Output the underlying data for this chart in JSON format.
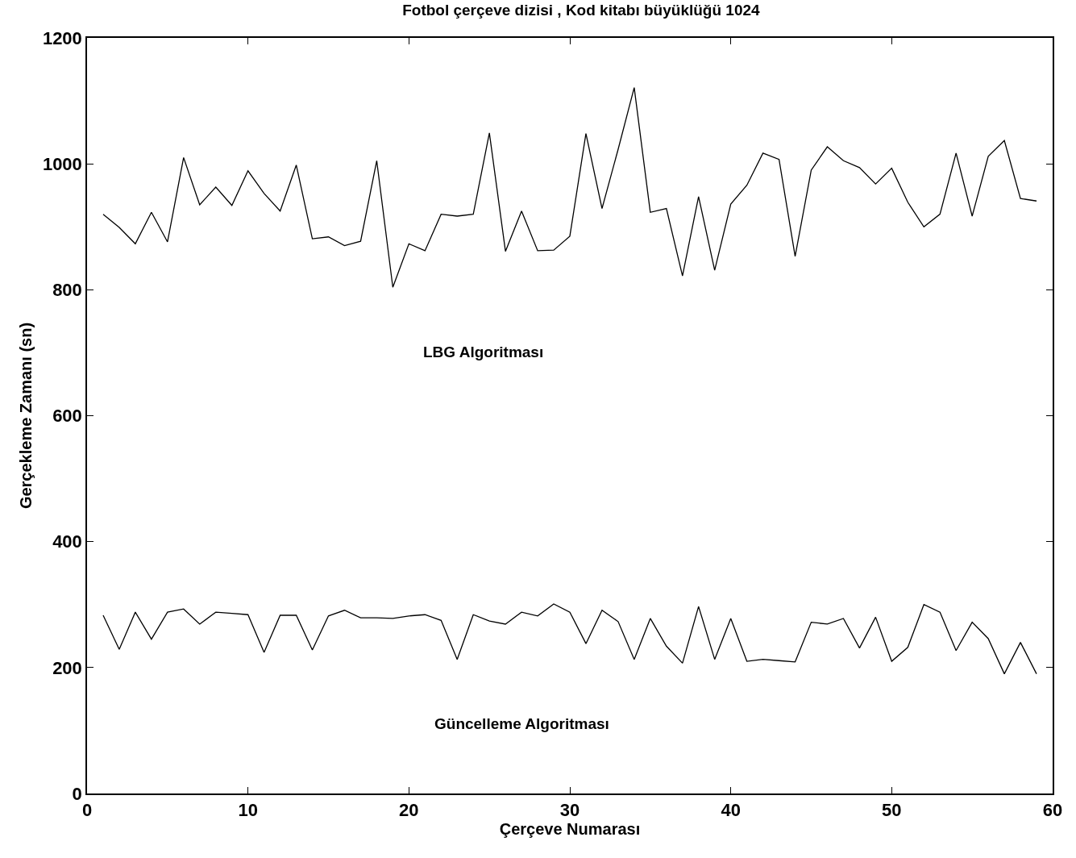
{
  "chart_data": {
    "type": "line",
    "title": "Fotbol çerçeve dizisi , Kod kitabı büyüklüğü 1024",
    "xlabel": "Çerçeve Numarası",
    "ylabel": "Gerçekleme Zamanı (sn)",
    "x": [
      1,
      2,
      3,
      4,
      5,
      6,
      7,
      8,
      9,
      10,
      11,
      12,
      13,
      14,
      15,
      16,
      17,
      18,
      19,
      20,
      21,
      22,
      23,
      24,
      25,
      26,
      27,
      28,
      29,
      30,
      31,
      32,
      33,
      34,
      35,
      36,
      37,
      38,
      39,
      40,
      41,
      42,
      43,
      44,
      45,
      46,
      47,
      48,
      49,
      50,
      51,
      52,
      53,
      54,
      55,
      56,
      57,
      58,
      59
    ],
    "series": [
      {
        "color": "#000000",
        "values": [
          920,
          899,
          873,
          923,
          876,
          1010,
          935,
          963,
          934,
          989,
          953,
          925,
          998,
          881,
          884,
          870,
          877,
          1005,
          804,
          873,
          862,
          920,
          917,
          920,
          1049,
          861,
          925,
          862,
          863,
          885,
          1048,
          929,
          1023,
          1121,
          923,
          929,
          822,
          948,
          831,
          936,
          966,
          1017,
          1007,
          853,
          990,
          1027,
          1005,
          994,
          968,
          993,
          939,
          900,
          920,
          1017,
          917,
          1012,
          1037,
          945,
          941
        ]
      },
      {
        "color": "#000000",
        "values": [
          283,
          229,
          288,
          245,
          288,
          293,
          269,
          288,
          286,
          284,
          224,
          283,
          283,
          228,
          282,
          291,
          279,
          279,
          278,
          282,
          284,
          275,
          213,
          284,
          274,
          269,
          288,
          282,
          301,
          288,
          238,
          291,
          273,
          213,
          278,
          234,
          207,
          297,
          213,
          278,
          210,
          213,
          211,
          209,
          272,
          269,
          278,
          231,
          280,
          210,
          232,
          300,
          288,
          227,
          272,
          246,
          190,
          240,
          190
        ]
      }
    ],
    "annotations": [
      "LBG Algoritması",
      "Güncelleme Algoritması"
    ],
    "xlim": [
      0,
      60
    ],
    "xticks": [
      0,
      10,
      20,
      30,
      40,
      50,
      60
    ],
    "ylim": [
      0,
      1200
    ],
    "yticks": [
      0,
      200,
      400,
      600,
      800,
      1000,
      1200
    ],
    "grid": false,
    "marker": "none",
    "line_style": "solid"
  }
}
